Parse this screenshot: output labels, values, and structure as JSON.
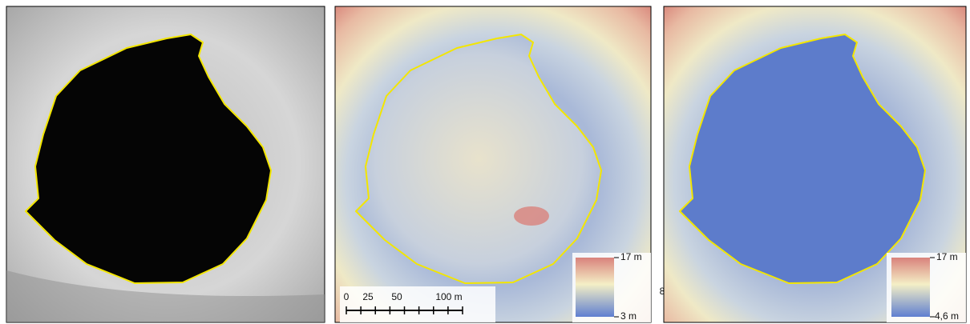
{
  "panels": [
    {
      "kind": "satellite image"
    },
    {
      "kind": "elevation model",
      "scale_bar": {
        "labels": [
          "0",
          "25",
          "50",
          "100 m"
        ]
      },
      "legend": {
        "max": "17 m",
        "min": "3 m"
      }
    },
    {
      "kind": "elevation model",
      "stray_label": "8",
      "legend": {
        "max": "17 m",
        "min": "4,6 m"
      }
    }
  ]
}
